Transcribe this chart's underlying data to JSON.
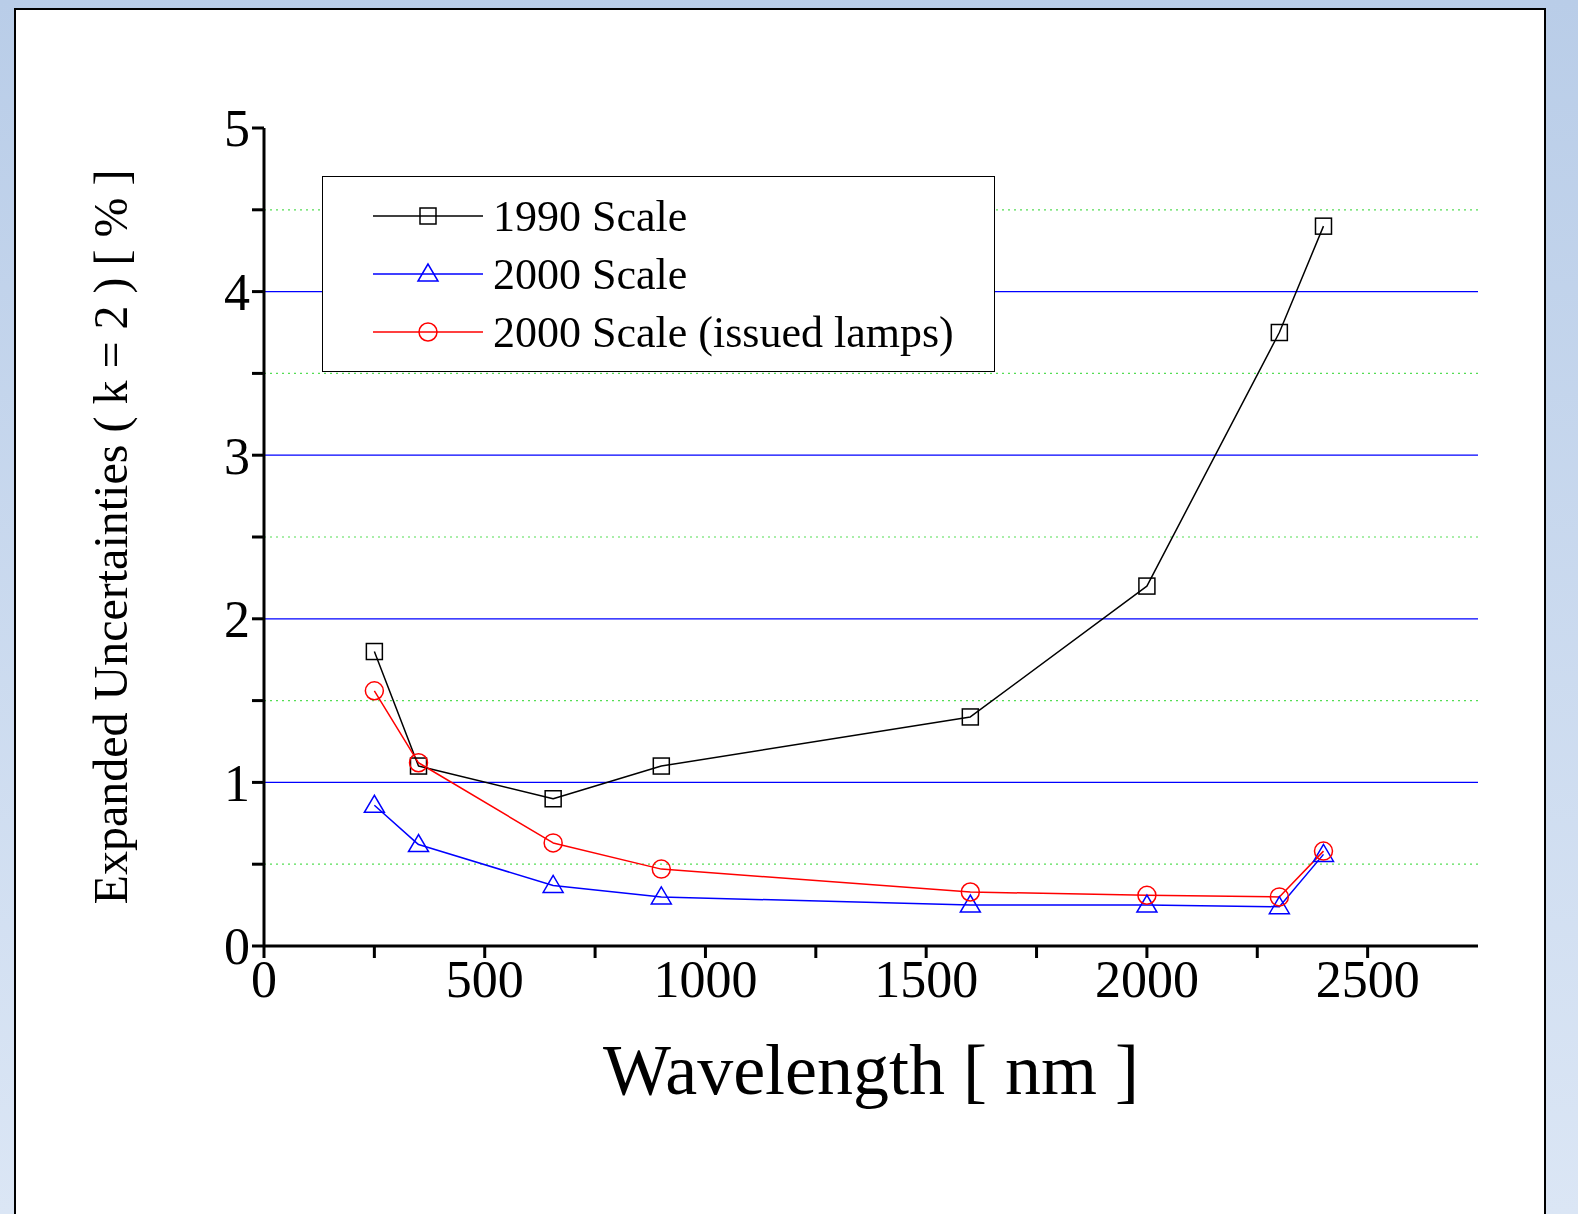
{
  "chart_data": {
    "type": "line",
    "xlabel": "Wavelength [ nm ]",
    "ylabel": "Expanded Uncertainties ( k = 2 ) [ % ]",
    "xlim": [
      0,
      2750
    ],
    "xticks": [
      0,
      {
        "value": 250,
        "label": null
      },
      500,
      {
        "value": 750,
        "label": null
      },
      1000,
      {
        "value": 1250,
        "label": null
      },
      1500,
      {
        "value": 1750,
        "label": null
      },
      2000,
      {
        "value": 2250,
        "label": null
      },
      2500
    ],
    "ylim": [
      0,
      5
    ],
    "yticks": [
      0,
      {
        "value": 0.5,
        "label": null
      },
      1,
      {
        "value": 1.5,
        "label": null
      },
      2,
      {
        "value": 2.5,
        "label": null
      },
      3,
      {
        "value": 3.5,
        "label": null
      },
      4,
      {
        "value": 4.5,
        "label": null
      },
      5
    ],
    "grid": "y",
    "legend": "top left",
    "series": [
      {
        "name": "1990 Scale",
        "color": "#000000",
        "marker": "square",
        "x": [
          250,
          350,
          655,
          900,
          1600,
          2000,
          2300,
          2400
        ],
        "values": [
          1.8,
          1.1,
          0.9,
          1.1,
          1.4,
          2.2,
          3.75,
          4.4
        ]
      },
      {
        "name": "2000 Scale",
        "color": "#0000ff",
        "marker": "triangle",
        "x": [
          250,
          350,
          655,
          900,
          1600,
          2000,
          2300,
          2400
        ],
        "values": [
          0.86,
          0.62,
          0.37,
          0.3,
          0.25,
          0.25,
          0.24,
          0.56
        ]
      },
      {
        "name": "2000 Scale (issued lamps)",
        "color": "#ff0000",
        "marker": "circle",
        "x": [
          250,
          350,
          655,
          900,
          1600,
          2000,
          2300,
          2400
        ],
        "values": [
          1.56,
          1.12,
          0.63,
          0.47,
          0.33,
          0.31,
          0.3,
          0.58
        ]
      }
    ]
  }
}
